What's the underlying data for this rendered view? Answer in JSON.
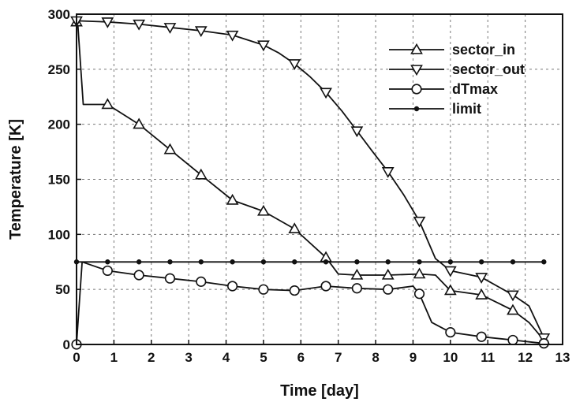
{
  "chart_data": {
    "type": "line",
    "xlabel": "Time  [day]",
    "ylabel": "Temperature  [K]",
    "xlim": [
      0,
      13
    ],
    "ylim": [
      0,
      300
    ],
    "xticks": [
      "0",
      "1",
      "2",
      "3",
      "4",
      "5",
      "6",
      "7",
      "8",
      "9",
      "10",
      "11",
      "12",
      "13"
    ],
    "yticks": [
      "0",
      "50",
      "100",
      "150",
      "200",
      "250",
      "300"
    ],
    "grid": true,
    "legend_position": "top-right",
    "line_color": "#111111",
    "series": [
      {
        "name": "sector_in",
        "marker": "triangle-up",
        "x": [
          0,
          0.03,
          0.18,
          0.83,
          1.67,
          2.5,
          3.33,
          4.17,
          5.0,
          5.83,
          6.67,
          7.0,
          7.5,
          8.33,
          9.17,
          9.6,
          10.0,
          10.83,
          11.67,
          12.1,
          12.5
        ],
        "y": [
          293,
          293,
          218,
          218,
          200,
          177,
          154,
          131,
          121,
          105,
          79,
          64,
          63,
          63,
          64,
          63,
          49,
          45,
          31,
          20,
          4
        ],
        "marker_x": [
          0,
          0.83,
          1.67,
          2.5,
          3.33,
          4.17,
          5.0,
          5.83,
          6.67,
          7.5,
          8.33,
          9.17,
          10.0,
          10.83,
          11.67,
          12.5
        ],
        "marker_y": [
          293,
          218,
          200,
          177,
          154,
          131,
          121,
          105,
          79,
          63,
          63,
          64,
          49,
          45,
          31,
          4
        ]
      },
      {
        "name": "sector_out",
        "marker": "triangle-down",
        "x": [
          0,
          0.83,
          1.67,
          2.5,
          3.33,
          4.17,
          5.0,
          5.4,
          5.83,
          6.25,
          6.67,
          7.1,
          7.5,
          7.9,
          8.33,
          8.75,
          9.17,
          9.6,
          10.0,
          10.83,
          11.67,
          12.1,
          12.5
        ],
        "y": [
          294,
          293,
          291,
          288,
          285,
          281,
          272,
          265,
          255,
          243,
          229,
          212,
          194,
          176,
          157,
          136,
          112,
          78,
          67,
          61,
          45,
          35,
          6
        ],
        "marker_x": [
          0,
          0.83,
          1.67,
          2.5,
          3.33,
          4.17,
          5.0,
          5.83,
          6.67,
          7.5,
          8.33,
          9.17,
          10.0,
          10.83,
          11.67,
          12.5
        ],
        "marker_y": [
          294,
          293,
          291,
          288,
          285,
          281,
          272,
          255,
          229,
          194,
          157,
          112,
          67,
          61,
          45,
          6
        ]
      },
      {
        "name": "dTmax",
        "marker": "circle",
        "x": [
          0,
          0.06,
          0.15,
          0.83,
          1.67,
          2.5,
          3.33,
          4.17,
          5.0,
          5.83,
          6.67,
          7.5,
          8.33,
          9.0,
          9.17,
          9.5,
          10.0,
          10.83,
          11.67,
          12.2,
          12.5
        ],
        "y": [
          0,
          30,
          75,
          67,
          63,
          60,
          57,
          53,
          50,
          49,
          53,
          51,
          50,
          53,
          46,
          20,
          11,
          7,
          4,
          2,
          1
        ],
        "marker_x": [
          0,
          0.83,
          1.67,
          2.5,
          3.33,
          4.17,
          5.0,
          5.83,
          6.67,
          7.5,
          8.33,
          9.17,
          10.0,
          10.83,
          11.67,
          12.5
        ],
        "marker_y": [
          0,
          67,
          63,
          60,
          57,
          53,
          50,
          49,
          53,
          51,
          50,
          46,
          11,
          7,
          4,
          1
        ]
      },
      {
        "name": "limit",
        "marker": "dot",
        "x": [
          0,
          12.5
        ],
        "y": [
          75,
          75
        ],
        "marker_x": [
          0,
          0.83,
          1.67,
          2.5,
          3.33,
          4.17,
          5.0,
          5.83,
          6.67,
          7.5,
          8.33,
          9.17,
          10.0,
          10.83,
          11.67,
          12.5
        ],
        "marker_y": [
          75,
          75,
          75,
          75,
          75,
          75,
          75,
          75,
          75,
          75,
          75,
          75,
          75,
          75,
          75,
          75
        ]
      }
    ]
  }
}
